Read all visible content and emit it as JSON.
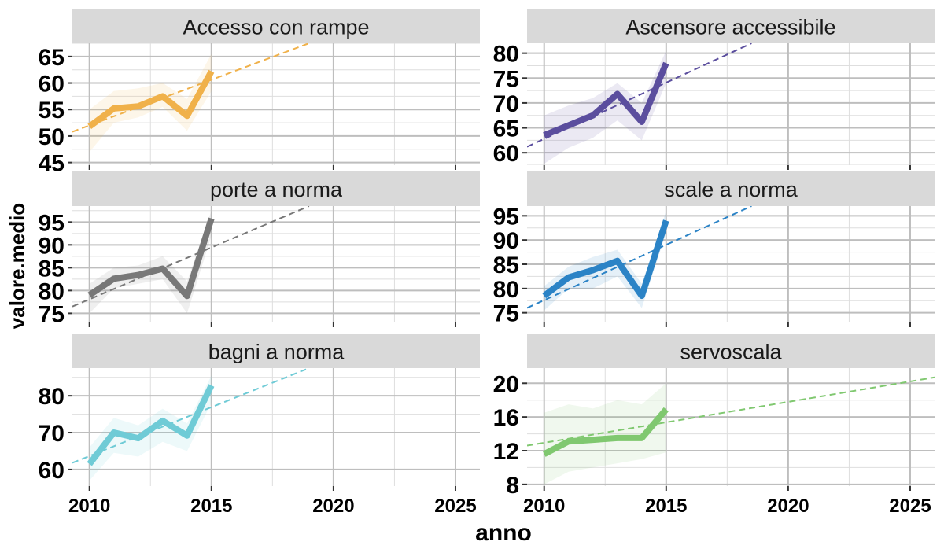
{
  "chart_data": {
    "type": "line",
    "xlabel": "anno",
    "ylabel": "valore.medio",
    "xlim": [
      2009.3,
      2026
    ],
    "x_ticks": [
      2010,
      2015,
      2020,
      2025
    ],
    "grid": true,
    "panels": [
      {
        "name": "Accesso con rampe",
        "color": "#F0B14A",
        "ylim": [
          44.5,
          67.5
        ],
        "y_ticks": [
          45,
          50,
          55,
          60,
          65
        ],
        "x": [
          2010,
          2011,
          2012,
          2013,
          2014,
          2015
        ],
        "values": [
          51.8,
          55.2,
          55.6,
          57.5,
          53.8,
          62.2
        ],
        "band_lower": [
          47.0,
          52.5,
          53.5,
          55.5,
          51.0,
          58.5
        ],
        "band_upper": [
          55.0,
          58.5,
          59.0,
          60.0,
          57.0,
          65.5
        ],
        "trend": {
          "x0": 2009.3,
          "y0": 50.8,
          "x1": 2019,
          "y1": 67.5
        }
      },
      {
        "name": "Ascensore accessibile",
        "color": "#5B4E9E",
        "ylim": [
          57.5,
          82
        ],
        "y_ticks": [
          60,
          65,
          70,
          75,
          80
        ],
        "x": [
          2010,
          2011,
          2012,
          2013,
          2014,
          2015
        ],
        "values": [
          63.5,
          65.5,
          67.5,
          71.8,
          66.2,
          78.0
        ],
        "band_lower": [
          57.8,
          61.0,
          63.0,
          66.5,
          62.5,
          74.0
        ],
        "band_upper": [
          67.5,
          69.5,
          71.0,
          74.0,
          70.0,
          80.5
        ],
        "trend": {
          "x0": 2009.3,
          "y0": 61.2,
          "x1": 2018.5,
          "y1": 82.0
        }
      },
      {
        "name": "porte a norma",
        "color": "#787878",
        "ylim": [
          73,
          98.5
        ],
        "y_ticks": [
          75,
          80,
          85,
          90,
          95
        ],
        "x": [
          2010,
          2011,
          2012,
          2013,
          2014,
          2015
        ],
        "values": [
          79.0,
          82.6,
          83.4,
          84.8,
          78.8,
          95.8
        ],
        "band_lower": [
          75.0,
          80.5,
          81.5,
          82.5,
          75.0,
          92.0
        ],
        "band_upper": [
          81.5,
          85.0,
          85.5,
          87.5,
          82.0,
          97.5
        ],
        "trend": {
          "x0": 2009.3,
          "y0": 76.5,
          "x1": 2019,
          "y1": 98.5
        }
      },
      {
        "name": "scale a norma",
        "color": "#2B83C6",
        "ylim": [
          73,
          97
        ],
        "y_ticks": [
          75,
          80,
          85,
          90,
          95
        ],
        "x": [
          2010,
          2011,
          2012,
          2013,
          2014,
          2015
        ],
        "values": [
          78.5,
          82.3,
          83.8,
          85.7,
          78.5,
          94.0
        ],
        "band_lower": [
          75.5,
          80.0,
          80.0,
          82.5,
          76.0,
          91.5
        ],
        "band_upper": [
          80.5,
          84.5,
          86.5,
          88.0,
          81.0,
          96.0
        ],
        "trend": {
          "x0": 2009.3,
          "y0": 76.0,
          "x1": 2018.5,
          "y1": 97.0
        }
      },
      {
        "name": "bagni a norma",
        "color": "#6FCBD6",
        "ylim": [
          55.5,
          87.5
        ],
        "y_ticks": [
          60,
          70,
          80
        ],
        "x": [
          2010,
          2011,
          2012,
          2013,
          2014,
          2015
        ],
        "values": [
          61.5,
          70.0,
          68.5,
          73.2,
          69.2,
          82.8
        ],
        "band_lower": [
          57.0,
          64.5,
          63.5,
          67.5,
          65.0,
          78.0
        ],
        "band_upper": [
          66.0,
          74.0,
          72.0,
          76.5,
          72.5,
          85.5
        ],
        "trend": {
          "x0": 2009.3,
          "y0": 61.8,
          "x1": 2019,
          "y1": 87.5
        }
      },
      {
        "name": "servoscala",
        "color": "#80C870",
        "ylim": [
          7.8,
          21.8
        ],
        "y_ticks": [
          8,
          12,
          16,
          20
        ],
        "x": [
          2010,
          2011,
          2012,
          2013,
          2014,
          2015
        ],
        "values": [
          11.6,
          13.1,
          13.3,
          13.5,
          13.5,
          16.9
        ],
        "band_lower": [
          8.0,
          9.5,
          10.0,
          10.5,
          11.0,
          11.8
        ],
        "band_upper": [
          16.5,
          17.5,
          17.0,
          18.0,
          17.5,
          20.0
        ],
        "trend": {
          "x0": 2009.3,
          "y0": 12.6,
          "x1": 2026,
          "y1": 20.7
        }
      }
    ]
  }
}
